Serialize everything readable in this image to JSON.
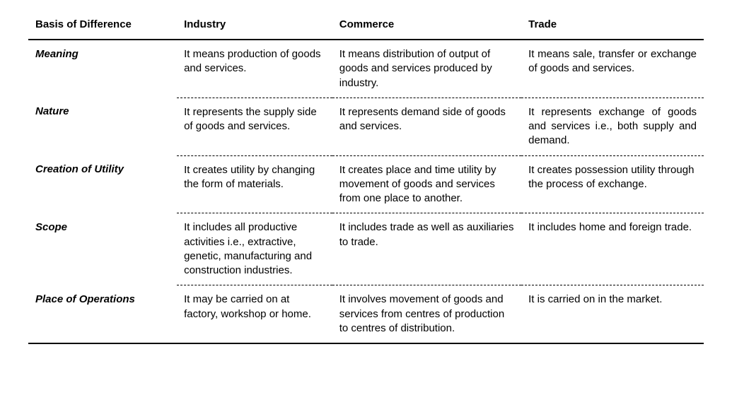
{
  "headers": {
    "basis": "Basis of Difference",
    "industry": "Industry",
    "commerce": "Commerce",
    "trade": "Trade"
  },
  "rows": [
    {
      "basis": "Meaning",
      "industry": "It means production of goods and services.",
      "commerce": "It means distribution of output of goods and services produced by industry.",
      "trade": "It means sale, transfer or exchange of goods and services."
    },
    {
      "basis": "Nature",
      "industry": "It represents the supply side of goods and services.",
      "commerce": "It represents demand side of goods and services.",
      "trade": "It represents exchange of goods and services i.e., both supply and demand."
    },
    {
      "basis": "Creation of Utility",
      "industry": "It creates utility by changing the form of materials.",
      "commerce": "It creates place and time utility by movement of goods and services from one place to another.",
      "trade": "It creates possession utility through the process of exchange."
    },
    {
      "basis": "Scope",
      "industry": "It includes all productive activities i.e., extractive, genetic, manufacturing and construction industries.",
      "commerce": "It includes trade as well as auxiliaries to trade.",
      "trade": "It includes home and foreign trade."
    },
    {
      "basis": "Place of Operations",
      "industry": "It may be carried on at factory, workshop or home.",
      "commerce": "It involves movement of goods and services from centres of production to centres of distribution.",
      "trade": "It is carried on in the market."
    }
  ]
}
